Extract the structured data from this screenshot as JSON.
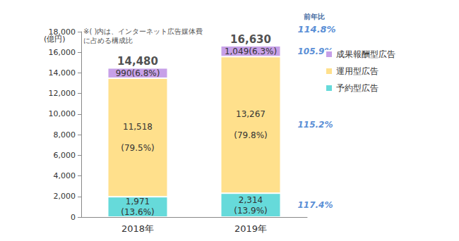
{
  "chart_data": {
    "type": "bar",
    "stacked": true,
    "data_labels": true,
    "grid": false,
    "legend": "right",
    "note": "※( )内は、インターネット広告媒体費\nに占める構成比",
    "y_unit": "(億円)",
    "categories": [
      "2018年",
      "2019年"
    ],
    "ylim": [
      0,
      18000
    ],
    "yticks": [
      0,
      {
        "value": 2000,
        "label": "2,000"
      },
      {
        "value": 4000,
        "label": "4,000"
      },
      {
        "value": 6000,
        "label": "6,000"
      },
      {
        "value": 8000,
        "label": "8,000"
      },
      {
        "value": 10000,
        "label": "10,000"
      },
      {
        "value": 12000,
        "label": "12,000"
      },
      {
        "value": 14000,
        "label": "14,000"
      },
      {
        "value": 16000,
        "label": "16,000"
      },
      {
        "value": 18000,
        "label": "18,000"
      }
    ],
    "series": [
      {
        "name": "予約型広告",
        "color": "#66dada",
        "values": [
          1971,
          2314
        ],
        "value_labels": [
          "1,971\n(13.6%)",
          "2,314\n(13.9%)"
        ],
        "yoy": {
          "value": 117.4,
          "label": "117.4%"
        }
      },
      {
        "name": "運用型広告",
        "color": "#ffe08c",
        "values": [
          11518,
          13267
        ],
        "value_labels": [
          "11,518\n\n(79.5%)",
          "13,267\n\n(79.8%)"
        ],
        "yoy": {
          "value": 115.2,
          "label": "115.2%"
        }
      },
      {
        "name": "成果報酬型広告",
        "color": "#c7a0e8",
        "values": [
          990,
          1049
        ],
        "value_labels": [
          "990(6.8%)",
          "1,049(6.3%)"
        ],
        "yoy": {
          "value": 105.9,
          "label": "105.9%"
        }
      }
    ],
    "totals": {
      "values": [
        14480,
        16630
      ],
      "value_labels": [
        "14,480",
        "16,630"
      ]
    },
    "yoy": {
      "title": "前年比",
      "total": {
        "value": 114.8,
        "label": "114.8%"
      }
    }
  }
}
